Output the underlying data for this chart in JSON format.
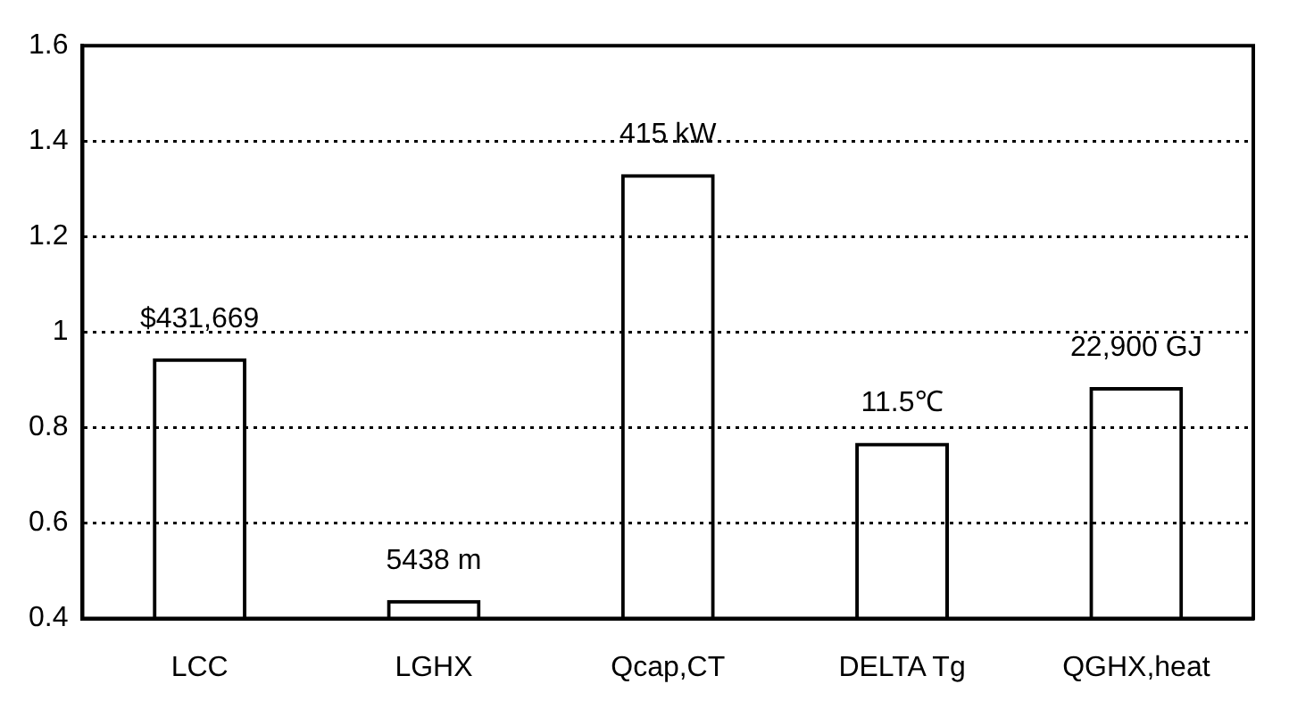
{
  "chart_data": {
    "type": "bar",
    "categories": [
      "LCC",
      "LGHX",
      "Qcap,CT",
      "DELTA Tg",
      "QGHX,heat"
    ],
    "values": [
      0.945,
      0.439,
      1.331,
      0.768,
      0.885
    ],
    "annotations": [
      {
        "text": "$431,669",
        "x": "LCC",
        "y": 0.945
      },
      {
        "text": "5438 m",
        "x": "LGHX",
        "y": 0.439
      },
      {
        "text": "415 kW",
        "x": "Qcap,CT",
        "y": 1.331
      },
      {
        "text": "11.5℃",
        "x": "DELTA Tg",
        "y": 0.768
      },
      {
        "text": "22,900 GJ",
        "x": "QGHX,heat",
        "y": 0.885
      }
    ],
    "color": "#000000",
    "ylim": [
      0.4,
      1.6
    ],
    "yticks": [
      0.4,
      0.6,
      0.8,
      1,
      1.2,
      1.4,
      1.6
    ],
    "grid": "y"
  }
}
